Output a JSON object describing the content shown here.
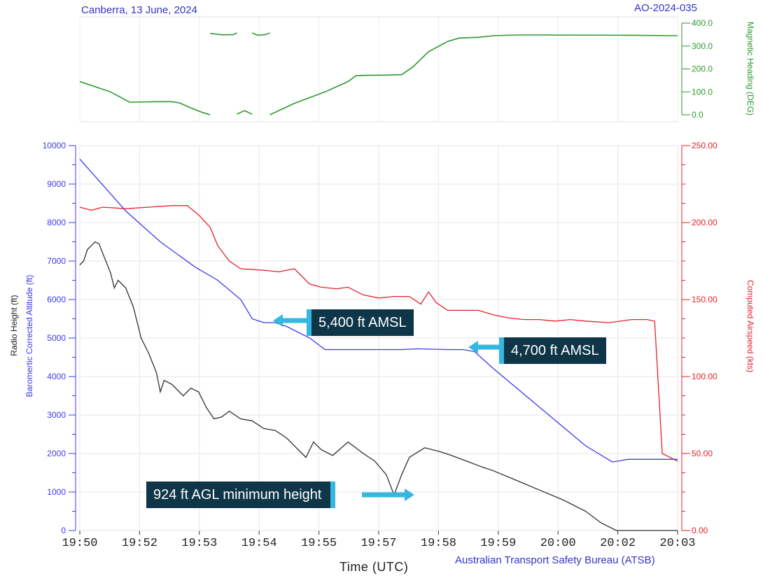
{
  "header": {
    "left": "Canberra, 13 June, 2024",
    "right": "AO-2024-035"
  },
  "footer": {
    "credit": "Australian Transport Safety Bureau (ATSB)"
  },
  "colors": {
    "heading": "#2e9a2e",
    "airspeed": "#e8202a",
    "baro": "#3a3aee",
    "radio": "#303030",
    "callout_bg": "#0f3648",
    "callout_arrow": "#35b7e0"
  },
  "chart_data": [
    {
      "type": "line",
      "ylabel": "Magnetic Heading (DEG)",
      "ylim": [
        0,
        400
      ],
      "yticks": [
        "0.0",
        "100.0",
        "200.0",
        "300.0",
        "400.0"
      ],
      "series": [
        {
          "name": "Magnetic Heading (DEG)",
          "segments": [
            [
              [
                "19:50:00",
                145
              ],
              [
                "19:50:40",
                100
              ],
              [
                "19:51:05",
                55
              ],
              [
                "19:51:40",
                57
              ],
              [
                "19:52:00",
                57
              ],
              [
                "19:52:10",
                52
              ],
              [
                "19:52:25",
                30
              ],
              [
                "19:52:40",
                10
              ],
              [
                "19:52:50",
                0
              ]
            ],
            [
              [
                "19:52:50",
                355
              ],
              [
                "19:53:05",
                349
              ],
              [
                "19:53:20",
                350
              ],
              [
                "19:53:25",
                357
              ]
            ],
            [
              [
                "19:53:25",
                3
              ],
              [
                "19:53:35",
                18
              ],
              [
                "19:53:45",
                2
              ]
            ],
            [
              [
                "19:53:45",
                357
              ],
              [
                "19:53:52",
                347
              ],
              [
                "19:54:02",
                350
              ],
              [
                "19:54:08",
                357
              ]
            ],
            [
              [
                "19:54:08",
                0
              ],
              [
                "19:54:40",
                50
              ],
              [
                "19:55:20",
                100
              ],
              [
                "19:55:50",
                145
              ],
              [
                "19:56:00",
                170
              ],
              [
                "19:56:10",
                172
              ],
              [
                "19:56:40",
                173
              ],
              [
                "19:57:00",
                175
              ],
              [
                "19:57:15",
                210
              ],
              [
                "19:57:35",
                275
              ],
              [
                "19:58:00",
                320
              ],
              [
                "19:58:15",
                335
              ],
              [
                "19:58:40",
                338
              ],
              [
                "19:59:00",
                345
              ],
              [
                "19:59:30",
                348
              ],
              [
                "20:00:00",
                348
              ],
              [
                "20:02:00",
                347
              ],
              [
                "20:03:00",
                345
              ]
            ]
          ]
        }
      ]
    },
    {
      "type": "line",
      "xlabel": "Time (UTC)",
      "x_tick_labels": [
        "19:50",
        "19:52",
        "19:53",
        "19:54",
        "19:55",
        "19:57",
        "19:58",
        "19:59",
        "20:00",
        "20:02",
        "20:03"
      ],
      "x_range": [
        "19:50:00",
        "20:03:00"
      ],
      "y_left_label": "Baromertic Corrected Altitude (ft)",
      "y_left_label_2": "Radio Height (ft)",
      "y_left_ticks": [
        "0",
        "1000",
        "2000",
        "3000",
        "4000",
        "5000",
        "6000",
        "7000",
        "8000",
        "9000",
        "10000"
      ],
      "y_left_range": [
        0,
        10000
      ],
      "y_right_label": "Computed Airspeed (kts)",
      "y_right_ticks": [
        "0.00",
        "50.00",
        "100.00",
        "150.00",
        "200.00",
        "250.00"
      ],
      "y_right_range": [
        0,
        250
      ],
      "grid": true,
      "series": [
        {
          "name": "Computed Airspeed (kts)",
          "axis": "right",
          "values": [
            [
              "19:50:00",
              210
            ],
            [
              "19:50:15",
              208
            ],
            [
              "19:50:30",
              210
            ],
            [
              "19:51:00",
              209
            ],
            [
              "19:51:30",
              210
            ],
            [
              "19:52:00",
              211
            ],
            [
              "19:52:20",
              211
            ],
            [
              "19:52:35",
              205
            ],
            [
              "19:52:50",
              197
            ],
            [
              "19:53:00",
              185
            ],
            [
              "19:53:15",
              175
            ],
            [
              "19:53:30",
              170
            ],
            [
              "19:54:00",
              169
            ],
            [
              "19:54:20",
              168
            ],
            [
              "19:54:40",
              170
            ],
            [
              "19:55:00",
              160
            ],
            [
              "19:55:15",
              158
            ],
            [
              "19:55:35",
              157
            ],
            [
              "19:55:50",
              158
            ],
            [
              "19:56:10",
              153
            ],
            [
              "19:56:30",
              151
            ],
            [
              "19:56:50",
              152
            ],
            [
              "19:57:10",
              152
            ],
            [
              "19:57:25",
              147
            ],
            [
              "19:57:35",
              155
            ],
            [
              "19:57:45",
              148
            ],
            [
              "19:58:00",
              143
            ],
            [
              "19:58:20",
              143
            ],
            [
              "19:58:40",
              143
            ],
            [
              "19:59:00",
              140
            ],
            [
              "19:59:20",
              138
            ],
            [
              "19:59:40",
              137
            ],
            [
              "20:00:00",
              137
            ],
            [
              "20:00:20",
              136
            ],
            [
              "20:00:40",
              137
            ],
            [
              "20:01:00",
              136
            ],
            [
              "20:01:30",
              135
            ],
            [
              "20:02:00",
              137
            ],
            [
              "20:02:20",
              137
            ],
            [
              "20:02:30",
              136
            ],
            [
              "20:02:40",
              50
            ],
            [
              "20:03:00",
              45
            ]
          ]
        },
        {
          "name": "Baromertic Corrected Altitude (ft)",
          "axis": "left",
          "values": [
            [
              "19:50:00",
              9650
            ],
            [
              "19:51:00",
              8300
            ],
            [
              "19:51:45",
              7500
            ],
            [
              "19:52:30",
              6850
            ],
            [
              "19:53:00",
              6500
            ],
            [
              "19:53:30",
              6000
            ],
            [
              "19:53:45",
              5500
            ],
            [
              "19:54:00",
              5400
            ],
            [
              "19:54:15",
              5400
            ],
            [
              "19:54:30",
              5300
            ],
            [
              "19:55:00",
              5000
            ],
            [
              "19:55:20",
              4700
            ],
            [
              "19:55:50",
              4700
            ],
            [
              "19:56:30",
              4700
            ],
            [
              "19:57:00",
              4700
            ],
            [
              "19:57:20",
              4720
            ],
            [
              "19:57:40",
              4710
            ],
            [
              "19:58:00",
              4700
            ],
            [
              "19:58:20",
              4700
            ],
            [
              "19:58:35",
              4650
            ],
            [
              "19:59:00",
              4200
            ],
            [
              "19:59:30",
              3700
            ],
            [
              "20:00:00",
              3200
            ],
            [
              "20:00:30",
              2700
            ],
            [
              "20:01:00",
              2200
            ],
            [
              "20:01:35",
              1780
            ],
            [
              "20:01:55",
              1850
            ],
            [
              "20:02:30",
              1850
            ],
            [
              "20:03:00",
              1850
            ]
          ]
        },
        {
          "name": "Radio Height (ft)",
          "axis": "left",
          "values": [
            [
              "19:50:00",
              6900
            ],
            [
              "19:50:05",
              7000
            ],
            [
              "19:50:10",
              7300
            ],
            [
              "19:50:20",
              7500
            ],
            [
              "19:50:25",
              7450
            ],
            [
              "19:50:30",
              7200
            ],
            [
              "19:50:40",
              6700
            ],
            [
              "19:50:45",
              6300
            ],
            [
              "19:50:50",
              6500
            ],
            [
              "19:51:00",
              6300
            ],
            [
              "19:51:10",
              5800
            ],
            [
              "19:51:20",
              5000
            ],
            [
              "19:51:30",
              4600
            ],
            [
              "19:51:40",
              4100
            ],
            [
              "19:51:45",
              3600
            ],
            [
              "19:51:50",
              3900
            ],
            [
              "19:52:00",
              3800
            ],
            [
              "19:52:10",
              3600
            ],
            [
              "19:52:15",
              3500
            ],
            [
              "19:52:25",
              3700
            ],
            [
              "19:52:35",
              3600
            ],
            [
              "19:52:45",
              3200
            ],
            [
              "19:52:55",
              2900
            ],
            [
              "19:53:05",
              2950
            ],
            [
              "19:53:15",
              3100
            ],
            [
              "19:53:30",
              2900
            ],
            [
              "19:53:45",
              2850
            ],
            [
              "19:54:00",
              2650
            ],
            [
              "19:54:15",
              2600
            ],
            [
              "19:54:30",
              2400
            ],
            [
              "19:54:45",
              2100
            ],
            [
              "19:54:55",
              1900
            ],
            [
              "19:55:05",
              2300
            ],
            [
              "19:55:15",
              2100
            ],
            [
              "19:55:30",
              1950
            ],
            [
              "19:55:50",
              2300
            ],
            [
              "19:56:10",
              2000
            ],
            [
              "19:56:25",
              1800
            ],
            [
              "19:56:40",
              1450
            ],
            [
              "19:56:50",
              924
            ],
            [
              "19:57:00",
              1450
            ],
            [
              "19:57:10",
              1900
            ],
            [
              "19:57:30",
              2150
            ],
            [
              "19:57:50",
              2050
            ],
            [
              "19:58:05",
              1950
            ],
            [
              "19:58:25",
              1800
            ],
            [
              "19:58:45",
              1650
            ],
            [
              "19:59:00",
              1550
            ],
            [
              "19:59:30",
              1300
            ],
            [
              "20:00:00",
              1050
            ],
            [
              "20:00:30",
              800
            ],
            [
              "20:01:00",
              500
            ],
            [
              "20:01:20",
              200
            ],
            [
              "20:01:40",
              0
            ],
            [
              "20:03:00",
              0
            ]
          ]
        }
      ],
      "annotations": [
        {
          "text": "5,400 ft AMSL",
          "x": "19:54:10",
          "y": 5400,
          "axis": "left"
        },
        {
          "text": "4,700 ft AMSL",
          "x": "19:58:25",
          "y": 4700,
          "axis": "left"
        },
        {
          "text": "924 ft AGL minimum height",
          "x": "19:56:50",
          "y": 924,
          "axis": "left"
        }
      ]
    }
  ]
}
